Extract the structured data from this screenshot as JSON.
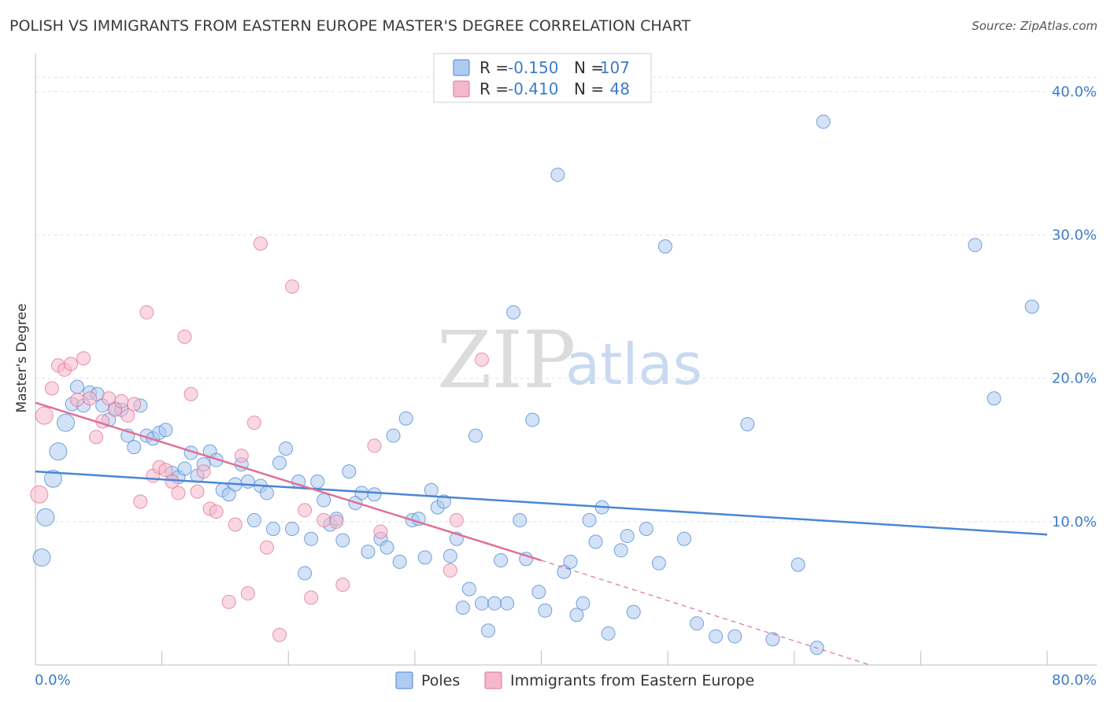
{
  "title": "POLISH VS IMMIGRANTS FROM EASTERN EUROPE MASTER'S DEGREE CORRELATION CHART",
  "source": "Source: ZipAtlas.com",
  "watermark": {
    "part1": "ZIP",
    "part2": "atlas"
  },
  "legend": {
    "rows": [
      {
        "r_label": "R = ",
        "r_value": "-0.150",
        "n_label": "N = ",
        "n_value": "107",
        "color": "#aecbf0"
      },
      {
        "r_label": "R = ",
        "r_value": "-0.410",
        "n_label": "N = ",
        "n_value": "48",
        "color": "#f5b8cb"
      }
    ]
  },
  "bottom_legend": [
    {
      "label": "Poles",
      "color": "#aecbf0"
    },
    {
      "label": "Immigrants from Eastern Europe",
      "color": "#f5b8cb"
    }
  ],
  "chart_data": {
    "type": "scatter",
    "title": "POLISH VS IMMIGRANTS FROM EASTERN EUROPE MASTER'S DEGREE CORRELATION CHART",
    "xlabel": "",
    "ylabel": "Master's Degree",
    "xlim": [
      0,
      80
    ],
    "ylim": [
      0,
      42
    ],
    "x_tick_labels": [
      "0.0%",
      "80.0%"
    ],
    "y_ticks": [
      10,
      20,
      30,
      40
    ],
    "y_tick_labels": [
      "10.0%",
      "20.0%",
      "30.0%",
      "40.0%"
    ],
    "grid": true,
    "legend_position": "top-center",
    "series": [
      {
        "name": "Poles",
        "color": "#4a86d4",
        "fill": "#aecbf0",
        "trend": {
          "x0": 0,
          "y0": 13.5,
          "x1": 80,
          "y1": 9.1
        },
        "points": [
          [
            0.5,
            7.5
          ],
          [
            0.8,
            10.3
          ],
          [
            1.4,
            13.0
          ],
          [
            1.8,
            14.9
          ],
          [
            2.4,
            16.9
          ],
          [
            2.9,
            18.2
          ],
          [
            3.3,
            19.4
          ],
          [
            3.8,
            18.1
          ],
          [
            4.3,
            19.0
          ],
          [
            4.9,
            18.9
          ],
          [
            5.3,
            18.1
          ],
          [
            5.8,
            17.1
          ],
          [
            6.3,
            17.9
          ],
          [
            6.8,
            17.8
          ],
          [
            7.3,
            16.0
          ],
          [
            7.8,
            15.2
          ],
          [
            8.3,
            18.1
          ],
          [
            8.8,
            16.0
          ],
          [
            9.3,
            15.8
          ],
          [
            9.8,
            16.2
          ],
          [
            10.3,
            16.4
          ],
          [
            10.8,
            13.4
          ],
          [
            11.3,
            13.1
          ],
          [
            11.8,
            13.7
          ],
          [
            12.3,
            14.8
          ],
          [
            12.8,
            13.2
          ],
          [
            13.3,
            14.0
          ],
          [
            13.8,
            14.9
          ],
          [
            14.3,
            14.3
          ],
          [
            14.8,
            12.2
          ],
          [
            15.3,
            11.9
          ],
          [
            15.8,
            12.6
          ],
          [
            16.3,
            14.0
          ],
          [
            16.8,
            12.8
          ],
          [
            17.3,
            10.1
          ],
          [
            17.8,
            12.5
          ],
          [
            18.3,
            12.0
          ],
          [
            18.8,
            9.5
          ],
          [
            19.3,
            14.1
          ],
          [
            19.8,
            15.1
          ],
          [
            20.3,
            9.5
          ],
          [
            20.8,
            12.8
          ],
          [
            21.3,
            6.4
          ],
          [
            21.8,
            8.8
          ],
          [
            22.3,
            12.8
          ],
          [
            22.8,
            11.5
          ],
          [
            23.3,
            9.8
          ],
          [
            23.8,
            10.2
          ],
          [
            24.3,
            8.7
          ],
          [
            24.8,
            13.5
          ],
          [
            25.3,
            11.3
          ],
          [
            25.8,
            12.0
          ],
          [
            26.3,
            7.9
          ],
          [
            26.8,
            11.9
          ],
          [
            27.3,
            8.8
          ],
          [
            27.8,
            8.2
          ],
          [
            28.3,
            16.0
          ],
          [
            28.8,
            7.2
          ],
          [
            29.3,
            17.2
          ],
          [
            29.8,
            10.1
          ],
          [
            30.3,
            10.2
          ],
          [
            30.8,
            7.5
          ],
          [
            31.3,
            12.2
          ],
          [
            31.8,
            11.0
          ],
          [
            32.3,
            11.4
          ],
          [
            32.8,
            7.6
          ],
          [
            33.3,
            8.8
          ],
          [
            33.8,
            4.0
          ],
          [
            34.3,
            5.3
          ],
          [
            34.8,
            16.0
          ],
          [
            35.3,
            4.3
          ],
          [
            35.8,
            2.4
          ],
          [
            36.3,
            4.3
          ],
          [
            36.8,
            7.3
          ],
          [
            37.3,
            4.3
          ],
          [
            37.8,
            24.6
          ],
          [
            38.3,
            10.1
          ],
          [
            38.8,
            7.4
          ],
          [
            39.3,
            17.1
          ],
          [
            39.8,
            5.1
          ],
          [
            40.3,
            3.8
          ],
          [
            41.3,
            34.2
          ],
          [
            41.8,
            6.5
          ],
          [
            42.3,
            7.2
          ],
          [
            42.8,
            3.5
          ],
          [
            43.3,
            4.3
          ],
          [
            43.8,
            10.1
          ],
          [
            44.3,
            8.6
          ],
          [
            44.8,
            11.0
          ],
          [
            45.3,
            2.2
          ],
          [
            46.3,
            8.0
          ],
          [
            46.8,
            9.0
          ],
          [
            47.3,
            3.7
          ],
          [
            48.3,
            9.5
          ],
          [
            49.3,
            7.1
          ],
          [
            49.8,
            29.2
          ],
          [
            51.3,
            8.8
          ],
          [
            52.3,
            2.9
          ],
          [
            53.8,
            2.0
          ],
          [
            55.3,
            2.0
          ],
          [
            56.3,
            16.8
          ],
          [
            58.3,
            1.8
          ],
          [
            60.3,
            7.0
          ],
          [
            61.8,
            1.2
          ],
          [
            62.3,
            37.9
          ],
          [
            74.3,
            29.3
          ],
          [
            78.8,
            25.0
          ],
          [
            75.8,
            18.6
          ]
        ]
      },
      {
        "name": "Immigrants from Eastern Europe",
        "color": "#e07095",
        "fill": "#f5b8cb",
        "trend": {
          "x0": 0,
          "y0": 18.3,
          "x1": 40,
          "y1": 7.3,
          "dash_x1": 66,
          "dash_y1": 0.0
        },
        "points": [
          [
            0.3,
            11.9
          ],
          [
            0.7,
            17.4
          ],
          [
            1.3,
            19.3
          ],
          [
            1.8,
            20.9
          ],
          [
            2.3,
            20.6
          ],
          [
            2.8,
            21.0
          ],
          [
            3.3,
            18.5
          ],
          [
            3.8,
            21.4
          ],
          [
            4.3,
            18.6
          ],
          [
            4.8,
            15.9
          ],
          [
            5.3,
            17.0
          ],
          [
            5.8,
            18.6
          ],
          [
            6.3,
            17.8
          ],
          [
            6.8,
            18.4
          ],
          [
            7.3,
            17.4
          ],
          [
            7.8,
            18.2
          ],
          [
            8.3,
            11.4
          ],
          [
            8.8,
            24.6
          ],
          [
            9.3,
            13.2
          ],
          [
            9.8,
            13.8
          ],
          [
            10.3,
            13.6
          ],
          [
            10.8,
            12.8
          ],
          [
            11.3,
            12.0
          ],
          [
            11.8,
            22.9
          ],
          [
            12.3,
            18.9
          ],
          [
            12.8,
            12.1
          ],
          [
            13.3,
            13.5
          ],
          [
            13.8,
            10.9
          ],
          [
            14.3,
            10.7
          ],
          [
            15.3,
            4.4
          ],
          [
            15.8,
            9.8
          ],
          [
            16.3,
            14.6
          ],
          [
            16.8,
            5.0
          ],
          [
            17.3,
            16.9
          ],
          [
            17.8,
            29.4
          ],
          [
            18.3,
            8.2
          ],
          [
            19.3,
            2.1
          ],
          [
            20.3,
            26.4
          ],
          [
            21.3,
            10.8
          ],
          [
            21.8,
            4.7
          ],
          [
            22.8,
            10.1
          ],
          [
            23.8,
            10.0
          ],
          [
            24.3,
            5.6
          ],
          [
            26.8,
            15.3
          ],
          [
            27.3,
            9.3
          ],
          [
            32.8,
            6.6
          ],
          [
            33.3,
            10.1
          ],
          [
            35.3,
            21.3
          ]
        ]
      }
    ]
  }
}
